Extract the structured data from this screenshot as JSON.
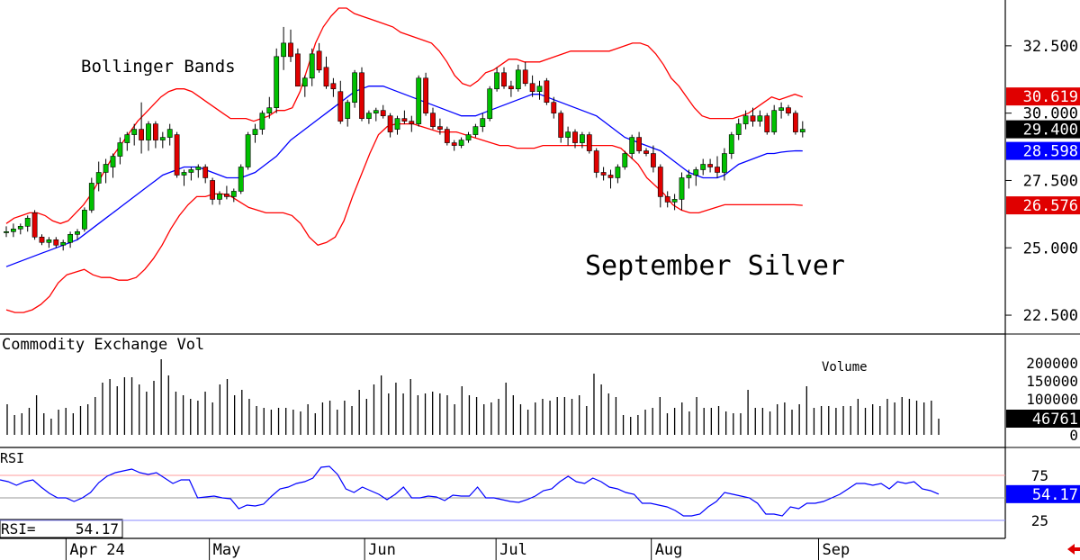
{
  "colors": {
    "up": "#00c000",
    "down": "#e00000",
    "band": "#ff0000",
    "mid": "#0000ff",
    "rsi": "#0000ff",
    "volume": "#000000",
    "grid": "#000000"
  },
  "chart_data": {
    "type": "candlestick",
    "title": "September Silver",
    "indicator_label": "Bollinger Bands",
    "x_months": [
      {
        "label": "Apr 24",
        "day": 5
      },
      {
        "label": "May",
        "day": 17
      },
      {
        "label": "Jun",
        "day": 30
      },
      {
        "label": "Jul",
        "day": 41
      },
      {
        "label": "Aug",
        "day": 54
      },
      {
        "label": "Sep",
        "day": 68
      }
    ],
    "price": {
      "ylim": [
        21.8,
        34.2
      ],
      "ticks": [
        "22.500",
        "25.000",
        "27.500",
        "30.000",
        "32.500"
      ],
      "tick_values": [
        22.5,
        25.0,
        27.5,
        30.0,
        32.5
      ],
      "tags": {
        "upper": "30.619",
        "last": "29.400",
        "mid": "28.598",
        "lower": "26.576"
      },
      "ohlc": [
        [
          25.6,
          25.8,
          25.4,
          25.6
        ],
        [
          25.6,
          25.9,
          25.4,
          25.7
        ],
        [
          25.7,
          25.9,
          25.5,
          25.8
        ],
        [
          25.8,
          26.2,
          25.6,
          26.1
        ],
        [
          26.3,
          26.4,
          25.3,
          25.4
        ],
        [
          25.4,
          25.5,
          25.1,
          25.2
        ],
        [
          25.2,
          25.4,
          25.0,
          25.3
        ],
        [
          25.3,
          25.4,
          25.0,
          25.1
        ],
        [
          25.1,
          25.3,
          24.9,
          25.2
        ],
        [
          25.2,
          25.6,
          25.0,
          25.5
        ],
        [
          25.5,
          25.7,
          25.3,
          25.6
        ],
        [
          25.7,
          26.5,
          25.6,
          26.4
        ],
        [
          26.4,
          27.6,
          26.3,
          27.4
        ],
        [
          27.4,
          28.2,
          27.1,
          27.8
        ],
        [
          27.8,
          28.3,
          27.4,
          28.1
        ],
        [
          28.0,
          28.5,
          27.6,
          28.4
        ],
        [
          28.4,
          29.1,
          28.1,
          28.9
        ],
        [
          28.9,
          29.3,
          28.6,
          29.2
        ],
        [
          29.2,
          29.6,
          28.8,
          29.4
        ],
        [
          29.4,
          30.4,
          28.5,
          29.0
        ],
        [
          29.0,
          29.7,
          28.6,
          29.6
        ],
        [
          29.6,
          29.7,
          28.7,
          29.0
        ],
        [
          29.0,
          29.3,
          28.7,
          29.1
        ],
        [
          29.1,
          29.6,
          28.8,
          29.4
        ],
        [
          29.2,
          29.3,
          27.6,
          27.7
        ],
        [
          27.7,
          27.9,
          27.3,
          27.8
        ],
        [
          27.8,
          28.0,
          27.5,
          27.9
        ],
        [
          27.9,
          28.1,
          27.6,
          28.0
        ],
        [
          28.0,
          28.1,
          27.4,
          27.6
        ],
        [
          27.5,
          27.6,
          26.6,
          26.8
        ],
        [
          26.8,
          27.1,
          26.6,
          27.0
        ],
        [
          27.0,
          27.3,
          26.8,
          26.9
        ],
        [
          26.9,
          27.2,
          26.7,
          27.1
        ],
        [
          27.1,
          28.1,
          27.0,
          28.0
        ],
        [
          28.0,
          29.3,
          27.9,
          29.2
        ],
        [
          29.2,
          29.6,
          28.9,
          29.4
        ],
        [
          29.4,
          30.1,
          29.2,
          30.0
        ],
        [
          30.0,
          30.6,
          29.8,
          30.2
        ],
        [
          30.2,
          32.4,
          30.0,
          32.1
        ],
        [
          32.1,
          33.2,
          31.6,
          32.6
        ],
        [
          32.6,
          33.1,
          31.9,
          32.1
        ],
        [
          32.2,
          32.4,
          31.0,
          31.0
        ],
        [
          31.0,
          31.4,
          30.6,
          31.3
        ],
        [
          31.3,
          32.4,
          31.0,
          32.2
        ],
        [
          32.3,
          32.6,
          31.5,
          31.6
        ],
        [
          31.7,
          32.1,
          30.9,
          31.0
        ],
        [
          31.1,
          31.3,
          30.6,
          30.9
        ],
        [
          30.8,
          31.2,
          29.6,
          29.7
        ],
        [
          29.8,
          30.5,
          29.5,
          30.4
        ],
        [
          30.4,
          31.6,
          30.2,
          31.5
        ],
        [
          31.5,
          31.7,
          29.7,
          29.8
        ],
        [
          29.8,
          30.1,
          29.6,
          30.0
        ],
        [
          30.0,
          30.2,
          29.7,
          30.1
        ],
        [
          30.1,
          30.3,
          29.8,
          29.9
        ],
        [
          29.9,
          30.0,
          29.1,
          29.3
        ],
        [
          29.4,
          29.9,
          29.2,
          29.8
        ],
        [
          29.8,
          30.1,
          29.6,
          29.7
        ],
        [
          29.7,
          29.9,
          29.3,
          29.6
        ],
        [
          29.6,
          31.4,
          29.5,
          31.3
        ],
        [
          31.3,
          31.5,
          29.9,
          30.0
        ],
        [
          30.0,
          30.2,
          29.4,
          29.5
        ],
        [
          29.5,
          29.8,
          29.2,
          29.4
        ],
        [
          29.4,
          29.5,
          28.8,
          28.9
        ],
        [
          28.9,
          29.0,
          28.6,
          28.8
        ],
        [
          28.8,
          29.1,
          28.7,
          29.0
        ],
        [
          29.0,
          29.3,
          28.9,
          29.2
        ],
        [
          29.2,
          29.6,
          29.1,
          29.5
        ],
        [
          29.5,
          30.0,
          29.3,
          29.8
        ],
        [
          29.8,
          31.0,
          29.7,
          30.9
        ],
        [
          30.9,
          31.7,
          30.8,
          31.5
        ],
        [
          31.5,
          31.7,
          30.9,
          31.0
        ],
        [
          31.0,
          31.2,
          30.6,
          30.9
        ],
        [
          30.9,
          31.8,
          30.8,
          31.6
        ],
        [
          31.6,
          31.9,
          31.0,
          31.1
        ],
        [
          31.1,
          31.4,
          30.6,
          30.8
        ],
        [
          30.8,
          31.2,
          30.5,
          31.0
        ],
        [
          31.2,
          31.3,
          30.3,
          30.4
        ],
        [
          30.4,
          30.6,
          29.8,
          30.0
        ],
        [
          30.0,
          30.1,
          28.9,
          29.1
        ],
        [
          29.1,
          29.5,
          28.8,
          29.3
        ],
        [
          29.3,
          29.4,
          28.7,
          28.9
        ],
        [
          28.9,
          29.3,
          28.7,
          29.2
        ],
        [
          29.2,
          29.3,
          28.5,
          28.6
        ],
        [
          28.6,
          28.7,
          27.6,
          27.8
        ],
        [
          27.8,
          28.0,
          27.5,
          27.7
        ],
        [
          27.7,
          27.9,
          27.2,
          27.6
        ],
        [
          27.6,
          28.1,
          27.4,
          28.0
        ],
        [
          28.0,
          28.6,
          27.9,
          28.5
        ],
        [
          28.5,
          29.2,
          28.3,
          29.1
        ],
        [
          29.1,
          29.3,
          28.5,
          28.6
        ],
        [
          28.6,
          28.7,
          28.4,
          28.5
        ],
        [
          28.5,
          28.8,
          27.8,
          28.0
        ],
        [
          28.0,
          28.1,
          26.5,
          26.9
        ],
        [
          26.9,
          27.1,
          26.5,
          26.7
        ],
        [
          26.7,
          27.0,
          26.4,
          26.8
        ],
        [
          26.8,
          27.8,
          26.4,
          27.6
        ],
        [
          27.6,
          27.9,
          27.2,
          27.7
        ],
        [
          27.7,
          28.0,
          27.3,
          27.9
        ],
        [
          27.9,
          28.3,
          27.7,
          28.1
        ],
        [
          28.1,
          28.3,
          27.8,
          28.0
        ],
        [
          28.0,
          28.4,
          27.6,
          27.8
        ],
        [
          27.8,
          28.7,
          27.5,
          28.5
        ],
        [
          28.5,
          29.3,
          28.3,
          29.2
        ],
        [
          29.2,
          29.8,
          29.0,
          29.6
        ],
        [
          29.6,
          30.1,
          29.4,
          29.9
        ],
        [
          29.9,
          30.2,
          29.5,
          29.7
        ],
        [
          29.7,
          30.1,
          29.5,
          29.9
        ],
        [
          29.9,
          30.0,
          29.2,
          29.3
        ],
        [
          29.3,
          30.3,
          29.2,
          30.1
        ],
        [
          30.1,
          30.4,
          29.8,
          30.2
        ],
        [
          30.2,
          30.3,
          29.9,
          30.0
        ],
        [
          30.0,
          30.1,
          29.2,
          29.3
        ],
        [
          29.3,
          29.7,
          29.1,
          29.4
        ]
      ],
      "bollinger_mid": [
        24.3,
        24.4,
        24.5,
        24.6,
        24.7,
        24.8,
        24.9,
        25.0,
        25.1,
        25.2,
        25.3,
        25.5,
        25.7,
        25.9,
        26.1,
        26.3,
        26.5,
        26.7,
        26.9,
        27.1,
        27.3,
        27.5,
        27.7,
        27.8,
        27.9,
        28.0,
        28.0,
        28.0,
        27.9,
        27.8,
        27.7,
        27.6,
        27.6,
        27.6,
        27.7,
        27.8,
        28.0,
        28.2,
        28.4,
        28.7,
        29.0,
        29.2,
        29.4,
        29.6,
        29.8,
        30.0,
        30.2,
        30.4,
        30.6,
        30.8,
        30.9,
        31.0,
        31.0,
        31.0,
        30.9,
        30.8,
        30.7,
        30.6,
        30.5,
        30.4,
        30.3,
        30.2,
        30.1,
        30.0,
        29.9,
        29.9,
        29.9,
        30.0,
        30.1,
        30.2,
        30.3,
        30.4,
        30.5,
        30.6,
        30.7,
        30.7,
        30.6,
        30.5,
        30.4,
        30.3,
        30.2,
        30.1,
        30.0,
        29.9,
        29.7,
        29.5,
        29.3,
        29.1,
        29.0,
        28.9,
        28.8,
        28.7,
        28.6,
        28.4,
        28.2,
        28.0,
        27.8,
        27.7,
        27.6,
        27.6,
        27.6,
        27.7,
        27.9,
        28.1,
        28.2,
        28.3,
        28.4,
        28.5,
        28.5,
        28.55,
        28.58,
        28.6,
        28.598
      ],
      "bollinger_upper": [
        25.9,
        26.1,
        26.2,
        26.3,
        26.3,
        26.2,
        26.0,
        25.9,
        26.0,
        26.3,
        26.6,
        27.0,
        27.5,
        28.0,
        28.5,
        28.9,
        29.3,
        29.7,
        30.0,
        30.3,
        30.6,
        30.8,
        30.9,
        30.9,
        30.8,
        30.6,
        30.4,
        30.2,
        30.0,
        29.8,
        29.8,
        29.8,
        29.7,
        29.8,
        29.9,
        30.1,
        30.1,
        30.2,
        30.8,
        31.7,
        32.6,
        33.2,
        33.6,
        33.9,
        33.9,
        33.7,
        33.6,
        33.5,
        33.4,
        33.3,
        33.2,
        33.0,
        32.9,
        32.8,
        32.7,
        32.6,
        32.3,
        31.9,
        31.4,
        31.1,
        31.0,
        31.2,
        31.5,
        31.6,
        31.8,
        32.0,
        32.0,
        31.9,
        31.9,
        31.9,
        32.0,
        32.1,
        32.2,
        32.3,
        32.3,
        32.3,
        32.3,
        32.3,
        32.3,
        32.4,
        32.5,
        32.6,
        32.6,
        32.5,
        32.2,
        31.8,
        31.3,
        31.0,
        30.6,
        30.2,
        29.9,
        29.8,
        29.8,
        29.8,
        29.8,
        29.9,
        30.0,
        30.2,
        30.4,
        30.6,
        30.5,
        30.6,
        30.7,
        30.6
      ],
      "bollinger_lower": [
        22.7,
        22.6,
        22.6,
        22.7,
        22.9,
        23.2,
        23.7,
        24.0,
        24.1,
        24.2,
        24.0,
        23.9,
        23.9,
        23.8,
        23.8,
        23.9,
        24.2,
        24.6,
        25.1,
        25.7,
        26.2,
        26.6,
        26.9,
        26.9,
        27.0,
        27.0,
        26.9,
        26.7,
        26.5,
        26.4,
        26.3,
        26.3,
        26.3,
        26.2,
        25.9,
        25.4,
        25.1,
        25.2,
        25.4,
        26.0,
        26.9,
        27.7,
        28.5,
        29.2,
        29.5,
        29.6,
        29.6,
        29.6,
        29.5,
        29.4,
        29.3,
        29.3,
        29.3,
        29.2,
        29.1,
        29.0,
        28.9,
        28.8,
        28.8,
        28.7,
        28.7,
        28.7,
        28.8,
        28.8,
        28.8,
        28.8,
        28.8,
        28.8,
        28.8,
        28.8,
        28.8,
        28.7,
        28.4,
        28.1,
        27.6,
        27.3,
        27.0,
        26.6,
        26.4,
        26.3,
        26.3,
        26.4,
        26.5,
        26.6,
        26.6,
        26.6,
        26.6,
        26.6,
        26.6,
        26.6,
        26.6,
        26.6,
        26.576
      ]
    },
    "volume": {
      "label_left": "Commodity Exchange Vol",
      "label_right": "Volume",
      "ticks": [
        "200000",
        "150000",
        "100000",
        "0"
      ],
      "tick_values": [
        200000,
        150000,
        100000,
        0
      ],
      "ylim": [
        0,
        225000
      ],
      "last_tag": "46761",
      "values": [
        85000,
        55000,
        60000,
        75000,
        110000,
        60000,
        45000,
        70000,
        75000,
        60000,
        80000,
        85000,
        105000,
        145000,
        155000,
        135000,
        160000,
        160000,
        140000,
        120000,
        150000,
        210000,
        165000,
        120000,
        110000,
        100000,
        95000,
        120000,
        90000,
        140000,
        155000,
        110000,
        125000,
        100000,
        80000,
        75000,
        70000,
        75000,
        75000,
        70000,
        65000,
        85000,
        60000,
        90000,
        95000,
        70000,
        95000,
        80000,
        125000,
        100000,
        140000,
        165000,
        115000,
        145000,
        115000,
        155000,
        110000,
        115000,
        120000,
        115000,
        110000,
        85000,
        135000,
        110000,
        105000,
        85000,
        90000,
        100000,
        145000,
        110000,
        85000,
        70000,
        90000,
        100000,
        95000,
        105000,
        105000,
        100000,
        110000,
        80000,
        170000,
        140000,
        115000,
        105000,
        55000,
        50000,
        55000,
        70000,
        75000,
        105000,
        60000,
        75000,
        90000,
        65000,
        105000,
        75000,
        75000,
        80000,
        65000,
        60000,
        60000,
        125000,
        75000,
        75000,
        65000,
        85000,
        90000,
        70000,
        85000,
        135000,
        75000,
        80000,
        80000,
        75000,
        80000,
        80000,
        100000,
        75000,
        85000,
        80000,
        100000,
        90000,
        105000,
        100000,
        95000,
        90000,
        95000,
        45000
      ]
    },
    "rsi": {
      "label": "RSI",
      "ticks": [
        "75",
        "25"
      ],
      "tick_values": [
        75,
        25
      ],
      "ylim": [
        5,
        105
      ],
      "reference_lines": [
        75,
        50,
        25
      ],
      "readout_label": "RSI=",
      "readout_value": "54.17",
      "last_tag": "54.17",
      "values": [
        70,
        68,
        64,
        68,
        70,
        62,
        55,
        50,
        50,
        46,
        50,
        56,
        67,
        74,
        78,
        80,
        82,
        78,
        76,
        78,
        72,
        66,
        70,
        70,
        50,
        51,
        52,
        50,
        49,
        38,
        42,
        41,
        43,
        52,
        60,
        62,
        66,
        68,
        72,
        84,
        85,
        76,
        60,
        56,
        62,
        58,
        54,
        48,
        54,
        62,
        50,
        50,
        52,
        51,
        47,
        53,
        52,
        52,
        62,
        50,
        50,
        48,
        46,
        45,
        48,
        52,
        58,
        60,
        68,
        74,
        68,
        66,
        72,
        68,
        62,
        60,
        56,
        54,
        44,
        44,
        42,
        40,
        36,
        30,
        30,
        32,
        40,
        46,
        56,
        54,
        52,
        50,
        44,
        32,
        32,
        30,
        40,
        38,
        44,
        44,
        46,
        50,
        54,
        60,
        66,
        66,
        64,
        66,
        60,
        68,
        66,
        68,
        60,
        58,
        54.17
      ]
    }
  }
}
